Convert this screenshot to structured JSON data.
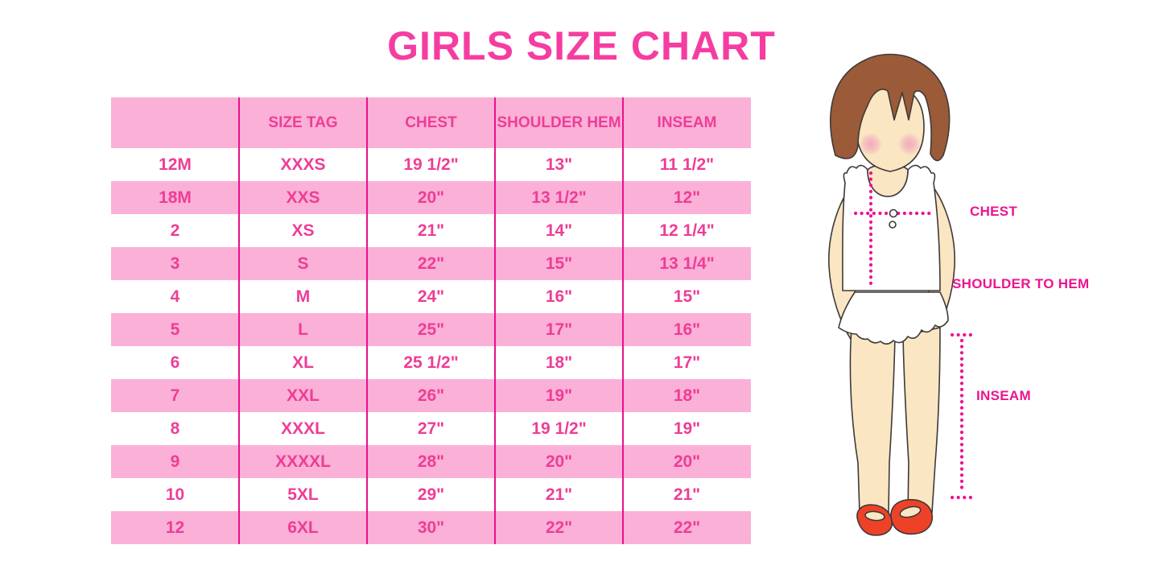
{
  "title": "GIRLS SIZE CHART",
  "colors": {
    "title_pink": "#F53DA1",
    "text_pink": "#EE3D96",
    "row_pink": "#FBB0D7",
    "line_magenta": "#E8118B",
    "label_magenta": "#EC1490",
    "skin": "#FAE6C2",
    "hair_brown": "#9B5B38",
    "shoe_red": "#EE4228",
    "outline_dark": "#3E3A39",
    "cheek_pink": "#F2A3BC"
  },
  "chart_data": {
    "type": "table",
    "title": "GIRLS SIZE CHART",
    "columns": [
      "",
      "SIZE TAG",
      "CHEST",
      "SHOULDER HEM",
      "INSEAM"
    ],
    "rows": [
      [
        "12M",
        "XXXS",
        "19 1/2\"",
        "13\"",
        "11 1/2\""
      ],
      [
        "18M",
        "XXS",
        "20\"",
        "13 1/2\"",
        "12\""
      ],
      [
        "2",
        "XS",
        "21\"",
        "14\"",
        "12 1/4\""
      ],
      [
        "3",
        "S",
        "22\"",
        "15\"",
        "13 1/4\""
      ],
      [
        "4",
        "M",
        "24\"",
        "16\"",
        "15\""
      ],
      [
        "5",
        "L",
        "25\"",
        "17\"",
        "16\""
      ],
      [
        "6",
        "XL",
        "25 1/2\"",
        "18\"",
        "17\""
      ],
      [
        "7",
        "XXL",
        "26\"",
        "19\"",
        "18\""
      ],
      [
        "8",
        "XXXL",
        "27\"",
        "19 1/2\"",
        "19\""
      ],
      [
        "9",
        "XXXXL",
        "28\"",
        "20\"",
        "20\""
      ],
      [
        "10",
        "5XL",
        "29\"",
        "21\"",
        "21\""
      ],
      [
        "12",
        "6XL",
        "30\"",
        "22\"",
        "22\""
      ]
    ]
  },
  "figure_labels": {
    "chest": "CHEST",
    "shoulder_to_hem": "SHOULDER TO HEM",
    "inseam": "INSEAM"
  }
}
